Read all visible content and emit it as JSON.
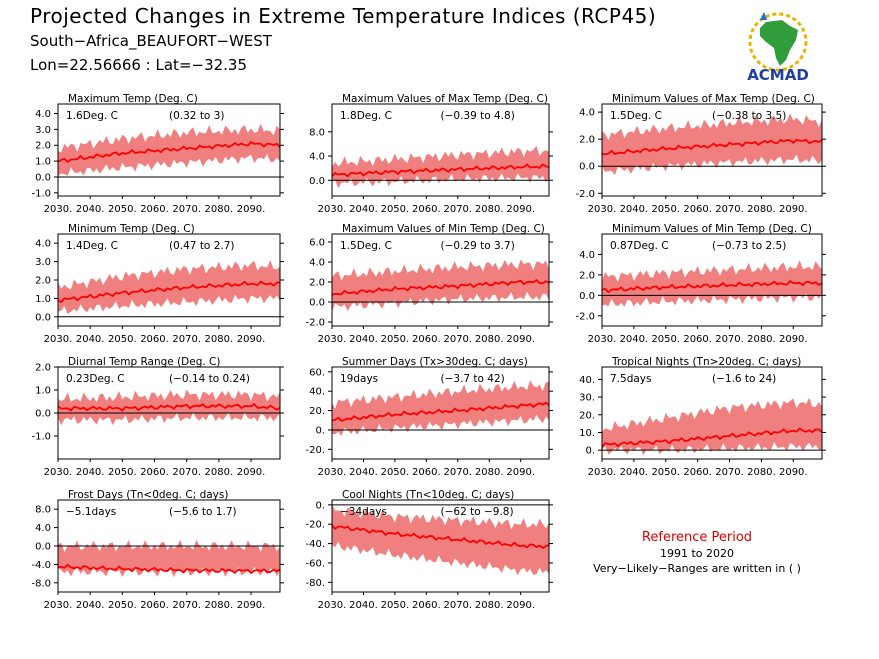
{
  "header": {
    "title": "Projected Changes in Extreme Temperature Indices (RCP45)",
    "location": "South−Africa_BEAUFORT−WEST",
    "coords": "Lon=22.56666 : Lat=−32.35"
  },
  "logo": {
    "text": "ACMAD",
    "icon": "africa-map-logo-icon"
  },
  "reference": {
    "title": "Reference Period",
    "years": "1991 to 2020",
    "note": "Very−Likely−Ranges are written in ( )"
  },
  "colors": {
    "band": "#f08080",
    "line": "#ff0000",
    "zero": "#000000",
    "ref_title": "#dd0000"
  },
  "chart_data": [
    {
      "type": "area",
      "title": "Maximum Temp (Deg. C)",
      "mean_label": "1.6Deg. C",
      "range_label": "(0.32 to 3)",
      "xlim": [
        2030,
        2099
      ],
      "x_ticks": [
        "2030.",
        "2040.",
        "2050.",
        "2060.",
        "2070.",
        "2080.",
        "2090."
      ],
      "ylim": [
        -1.2,
        4.6
      ],
      "y_ticks": [
        "-1.0",
        "0.0",
        "1.0",
        "2.0",
        "3.0",
        "4.0"
      ],
      "series": [
        {
          "x": [
            2030,
            2050,
            2070,
            2090,
            2099
          ],
          "y": [
            1.0,
            1.5,
            1.8,
            2.1,
            2.0
          ]
        },
        {
          "name": "lower",
          "x": [
            2030,
            2050,
            2070,
            2090,
            2099
          ],
          "y": [
            0.2,
            0.6,
            0.9,
            1.2,
            1.1
          ]
        },
        {
          "name": "upper",
          "x": [
            2030,
            2050,
            2070,
            2090,
            2099
          ],
          "y": [
            1.8,
            2.4,
            2.8,
            3.0,
            2.9
          ]
        }
      ]
    },
    {
      "type": "area",
      "title": "Maximum Values of Max Temp (Deg. C)",
      "mean_label": "1.8Deg. C",
      "range_label": "(−0.39 to 4.8)",
      "xlim": [
        2030,
        2099
      ],
      "x_ticks": [
        "2030.",
        "2040.",
        "2050.",
        "2060.",
        "2070.",
        "2080.",
        "2090."
      ],
      "ylim": [
        -2.6,
        12.6
      ],
      "y_ticks": [
        "0.0",
        "4.0",
        "8.0"
      ],
      "series": [
        {
          "x": [
            2030,
            2050,
            2070,
            2090,
            2099
          ],
          "y": [
            0.9,
            1.4,
            1.8,
            2.2,
            2.3
          ]
        },
        {
          "name": "lower",
          "x": [
            2030,
            2050,
            2070,
            2090,
            2099
          ],
          "y": [
            -0.5,
            -0.2,
            0.2,
            0.4,
            0.4
          ]
        },
        {
          "name": "upper",
          "x": [
            2030,
            2050,
            2070,
            2090,
            2099
          ],
          "y": [
            2.8,
            3.5,
            4.2,
            4.8,
            4.9
          ]
        }
      ]
    },
    {
      "type": "area",
      "title": "Minimum Values of Max Temp (Deg. C)",
      "mean_label": "1.5Deg. C",
      "range_label": "(−0.38 to 3.5)",
      "xlim": [
        2030,
        2099
      ],
      "x_ticks": [
        "2030.",
        "2040.",
        "2050.",
        "2060.",
        "2070.",
        "2080.",
        "2090."
      ],
      "ylim": [
        -2.2,
        4.6
      ],
      "y_ticks": [
        "-2.0",
        "0.0",
        "2.0",
        "4.0"
      ],
      "series": [
        {
          "x": [
            2030,
            2050,
            2070,
            2090,
            2099
          ],
          "y": [
            0.9,
            1.3,
            1.6,
            1.9,
            1.8
          ]
        },
        {
          "name": "lower",
          "x": [
            2030,
            2050,
            2070,
            2090,
            2099
          ],
          "y": [
            -0.4,
            0.0,
            0.3,
            0.5,
            0.4
          ]
        },
        {
          "name": "upper",
          "x": [
            2030,
            2050,
            2070,
            2090,
            2099
          ],
          "y": [
            2.3,
            2.8,
            3.2,
            3.5,
            3.3
          ]
        }
      ]
    },
    {
      "type": "area",
      "title": "Minimum Temp (Deg. C)",
      "mean_label": "1.4Deg. C",
      "range_label": "(0.47 to 2.7)",
      "xlim": [
        2030,
        2099
      ],
      "x_ticks": [
        "2030.",
        "2040.",
        "2050.",
        "2060.",
        "2070.",
        "2080.",
        "2090."
      ],
      "ylim": [
        -0.5,
        4.5
      ],
      "y_ticks": [
        "0.0",
        "1.0",
        "2.0",
        "3.0",
        "4.0"
      ],
      "series": [
        {
          "x": [
            2030,
            2050,
            2070,
            2090,
            2099
          ],
          "y": [
            0.9,
            1.3,
            1.6,
            1.8,
            1.8
          ]
        },
        {
          "name": "lower",
          "x": [
            2030,
            2050,
            2070,
            2090,
            2099
          ],
          "y": [
            0.3,
            0.6,
            0.8,
            1.0,
            1.0
          ]
        },
        {
          "name": "upper",
          "x": [
            2030,
            2050,
            2070,
            2090,
            2099
          ],
          "y": [
            1.6,
            2.2,
            2.6,
            2.8,
            2.7
          ]
        }
      ]
    },
    {
      "type": "area",
      "title": "Maximum Values of Min Temp (Deg. C)",
      "mean_label": "1.5Deg. C",
      "range_label": "(−0.29 to 3.7)",
      "xlim": [
        2030,
        2099
      ],
      "x_ticks": [
        "2030.",
        "2040.",
        "2050.",
        "2060.",
        "2070.",
        "2080.",
        "2090."
      ],
      "ylim": [
        -2.4,
        6.8
      ],
      "y_ticks": [
        "-2.0",
        "0.0",
        "2.0",
        "4.0",
        "6.0"
      ],
      "series": [
        {
          "x": [
            2030,
            2050,
            2070,
            2090,
            2099
          ],
          "y": [
            0.8,
            1.3,
            1.6,
            2.0,
            2.0
          ]
        },
        {
          "name": "lower",
          "x": [
            2030,
            2050,
            2070,
            2090,
            2099
          ],
          "y": [
            -0.5,
            -0.1,
            0.3,
            0.5,
            0.5
          ]
        },
        {
          "name": "upper",
          "x": [
            2030,
            2050,
            2070,
            2090,
            2099
          ],
          "y": [
            2.6,
            3.1,
            3.5,
            3.8,
            3.8
          ]
        }
      ]
    },
    {
      "type": "area",
      "title": "Minimum Values of Min Temp (Deg. C)",
      "mean_label": "0.87Deg. C",
      "range_label": "(−0.73 to 2.5)",
      "xlim": [
        2030,
        2099
      ],
      "x_ticks": [
        "2030.",
        "2040.",
        "2050.",
        "2060.",
        "2070.",
        "2080.",
        "2090."
      ],
      "ylim": [
        -3.0,
        6.0
      ],
      "y_ticks": [
        "-2.0",
        "0.0",
        "2.0",
        "4.0"
      ],
      "series": [
        {
          "x": [
            2030,
            2050,
            2070,
            2090,
            2099
          ],
          "y": [
            0.5,
            0.8,
            1.0,
            1.2,
            1.2
          ]
        },
        {
          "name": "lower",
          "x": [
            2030,
            2050,
            2070,
            2090,
            2099
          ],
          "y": [
            -0.9,
            -0.6,
            -0.4,
            -0.2,
            -0.2
          ]
        },
        {
          "name": "upper",
          "x": [
            2030,
            2050,
            2070,
            2090,
            2099
          ],
          "y": [
            1.8,
            2.2,
            2.5,
            2.8,
            2.8
          ]
        }
      ]
    },
    {
      "type": "area",
      "title": "Diurnal Temp Range (Deg. C)",
      "mean_label": "0.23Deg. C",
      "range_label": "(−0.14 to 0.24)",
      "xlim": [
        2030,
        2099
      ],
      "x_ticks": [
        "2030.",
        "2040.",
        "2050.",
        "2060.",
        "2070.",
        "2080.",
        "2090."
      ],
      "ylim": [
        -2.0,
        2.0
      ],
      "y_ticks": [
        "-1.0",
        "0.0",
        "1.0",
        "2.0"
      ],
      "series": [
        {
          "x": [
            2030,
            2050,
            2070,
            2090,
            2099
          ],
          "y": [
            0.2,
            0.2,
            0.3,
            0.3,
            0.2
          ]
        },
        {
          "name": "lower",
          "x": [
            2030,
            2050,
            2070,
            2090,
            2099
          ],
          "y": [
            -0.3,
            -0.3,
            -0.2,
            -0.2,
            -0.2
          ]
        },
        {
          "name": "upper",
          "x": [
            2030,
            2050,
            2070,
            2090,
            2099
          ],
          "y": [
            0.6,
            0.7,
            0.8,
            0.8,
            0.7
          ]
        }
      ]
    },
    {
      "type": "area",
      "title": "Summer Days (Tx>30deg. C; days)",
      "mean_label": "19days",
      "range_label": "(−3.7 to 42)",
      "xlim": [
        2030,
        2099
      ],
      "x_ticks": [
        "2030.",
        "2040.",
        "2050.",
        "2060.",
        "2070.",
        "2080.",
        "2090."
      ],
      "ylim": [
        -30,
        65
      ],
      "y_ticks": [
        "-20.",
        "0.",
        "20.",
        "40.",
        "60."
      ],
      "series": [
        {
          "x": [
            2030,
            2050,
            2070,
            2090,
            2099
          ],
          "y": [
            10,
            16,
            20,
            25,
            27
          ]
        },
        {
          "name": "lower",
          "x": [
            2030,
            2050,
            2070,
            2090,
            2099
          ],
          "y": [
            -3,
            2,
            6,
            10,
            12
          ]
        },
        {
          "name": "upper",
          "x": [
            2030,
            2050,
            2070,
            2090,
            2099
          ],
          "y": [
            28,
            34,
            40,
            45,
            46
          ]
        }
      ]
    },
    {
      "type": "area",
      "title": "Tropical Nights (Tn>20deg. C; days)",
      "mean_label": "7.5days",
      "range_label": "(−1.6 to 24)",
      "xlim": [
        2030,
        2099
      ],
      "x_ticks": [
        "2030.",
        "2040.",
        "2050.",
        "2060.",
        "2070.",
        "2080.",
        "2090."
      ],
      "ylim": [
        -5,
        47
      ],
      "y_ticks": [
        "0.",
        "10.",
        "20.",
        "30.",
        "40."
      ],
      "series": [
        {
          "x": [
            2030,
            2050,
            2070,
            2090,
            2099
          ],
          "y": [
            3,
            5,
            8,
            11,
            11
          ]
        },
        {
          "name": "lower",
          "x": [
            2030,
            2050,
            2070,
            2090,
            2099
          ],
          "y": [
            0,
            0,
            1,
            2,
            2
          ]
        },
        {
          "name": "upper",
          "x": [
            2030,
            2050,
            2070,
            2090,
            2099
          ],
          "y": [
            12,
            18,
            24,
            27,
            26
          ]
        }
      ]
    },
    {
      "type": "area",
      "title": "Frost Days (Tn<0deg. C; days)",
      "mean_label": "−5.1days",
      "range_label": "(−5.6 to 1.7)",
      "xlim": [
        2030,
        2099
      ],
      "x_ticks": [
        "2030.",
        "2040.",
        "2050.",
        "2060.",
        "2070.",
        "2080.",
        "2090."
      ],
      "ylim": [
        -10,
        10
      ],
      "y_ticks": [
        "-8.0",
        "-4.0",
        "0.0",
        "4.0",
        "8.0"
      ],
      "series": [
        {
          "x": [
            2030,
            2050,
            2070,
            2090,
            2099
          ],
          "y": [
            -4.5,
            -5.0,
            -5.3,
            -5.4,
            -5.4
          ]
        },
        {
          "name": "lower",
          "x": [
            2030,
            2050,
            2070,
            2090,
            2099
          ],
          "y": [
            -5.6,
            -5.6,
            -5.6,
            -5.6,
            -5.6
          ]
        },
        {
          "name": "upper",
          "x": [
            2030,
            2050,
            2070,
            2090,
            2099
          ],
          "y": [
            0.0,
            0.0,
            0.0,
            0.0,
            0.0
          ]
        }
      ]
    },
    {
      "type": "area",
      "title": "Cool Nights (Tn<10deg. C; days)",
      "mean_label": "−34days",
      "range_label": "(−62 to −9.8)",
      "xlim": [
        2030,
        2099
      ],
      "x_ticks": [
        "2030.",
        "2040.",
        "2050.",
        "2060.",
        "2070.",
        "2080.",
        "2090."
      ],
      "ylim": [
        -90,
        5
      ],
      "y_ticks": [
        "-80.",
        "-60.",
        "-40.",
        "-20.",
        "0."
      ],
      "series": [
        {
          "x": [
            2030,
            2050,
            2070,
            2090,
            2099
          ],
          "y": [
            -22,
            -30,
            -36,
            -42,
            -43
          ]
        },
        {
          "name": "lower",
          "x": [
            2030,
            2050,
            2070,
            2090,
            2099
          ],
          "y": [
            -42,
            -52,
            -60,
            -68,
            -70
          ]
        },
        {
          "name": "upper",
          "x": [
            2030,
            2050,
            2070,
            2090,
            2099
          ],
          "y": [
            -5,
            -12,
            -16,
            -20,
            -20
          ]
        }
      ]
    }
  ]
}
